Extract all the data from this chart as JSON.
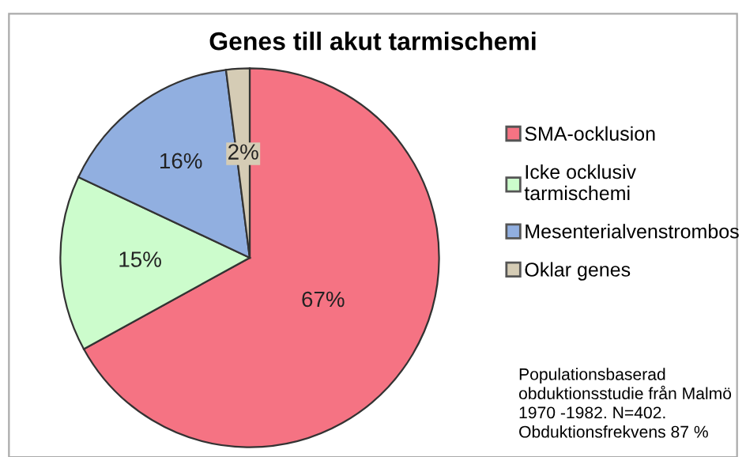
{
  "chart_data": {
    "type": "pie",
    "title": "Genes till akut tarmischemi",
    "categories": [
      "SMA-ocklusion",
      "Icke ocklusiv\ntarmischemi",
      "Mesenterialvenstrombos",
      "Oklar genes"
    ],
    "values": [
      67,
      15,
      16,
      2
    ],
    "colors": [
      "#f57383",
      "#ccfccc",
      "#91afe0",
      "#d5ccb5"
    ],
    "value_labels": [
      "67%",
      "15%",
      "16%",
      "2%"
    ],
    "legend": "right",
    "annotations": [
      "Populationsbaserad\nobduktionsstudie från Malmö\n1970 -1982. N=402.\nObduktionsfrekvens 87 %"
    ]
  }
}
